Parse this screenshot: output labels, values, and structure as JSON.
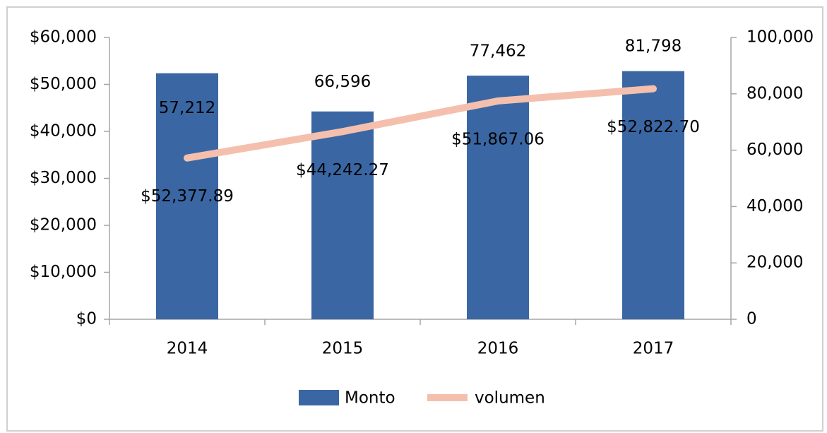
{
  "chart_data": {
    "type": "bar-line",
    "categories": [
      "2014",
      "2015",
      "2016",
      "2017"
    ],
    "series": [
      {
        "name": "Monto",
        "color": "#3a67a3",
        "type": "bar",
        "axis": "y",
        "values": [
          52377.89,
          44242.27,
          51867.06,
          52822.7
        ],
        "value_labels": [
          "$52,377.89",
          "$44,242.27",
          "$51,867.06",
          "$52,822.70"
        ]
      },
      {
        "name": "volumen",
        "color": "#f4c0ad",
        "type": "line",
        "axis": "y2",
        "values": [
          57212,
          66596,
          77462,
          81798
        ],
        "value_labels": [
          "57,212",
          "66,596",
          "77,462",
          "81,798"
        ]
      }
    ],
    "ylim": [
      0,
      60000
    ],
    "yticks": [
      {
        "value": 0,
        "label": "$0"
      },
      {
        "value": 10000,
        "label": "$10,000"
      },
      {
        "value": 20000,
        "label": "$20,000"
      },
      {
        "value": 30000,
        "label": "$30,000"
      },
      {
        "value": 40000,
        "label": "$40,000"
      },
      {
        "value": 50000,
        "label": "$50,000"
      },
      {
        "value": 60000,
        "label": "$60,000"
      }
    ],
    "y2lim": [
      0,
      100000
    ],
    "y2ticks": [
      0,
      {
        "value": 20000,
        "label": "20,000"
      },
      {
        "value": 40000,
        "label": "40,000"
      },
      {
        "value": 60000,
        "label": "60,000"
      },
      {
        "value": 80000,
        "label": "80,000"
      },
      {
        "value": 100000,
        "label": "100,000"
      }
    ],
    "legend": "bottom",
    "grid": false
  }
}
